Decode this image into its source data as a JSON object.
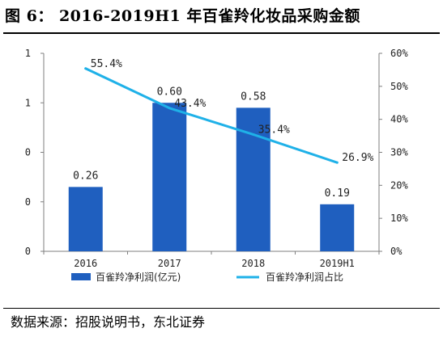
{
  "figure": {
    "title": "图 6：  2016-2019H1 年百雀羚化妆品采购金额",
    "source": "数据来源：招股说明书，东北证券"
  },
  "chart_data": {
    "type": "bar",
    "categories": [
      "2016",
      "2017",
      "2018",
      "2019H1"
    ],
    "series": [
      {
        "name": "百雀羚净利润(亿元)",
        "type": "bar",
        "axis": "left",
        "color": "#1f5fbf",
        "values": [
          0.26,
          0.6,
          0.58,
          0.19
        ],
        "labels": [
          "0.26",
          "0.60",
          "0.58",
          "0.19"
        ]
      },
      {
        "name": "百雀羚净利润占比",
        "type": "line",
        "axis": "right",
        "color": "#1fb1e8",
        "values": [
          55.4,
          43.4,
          35.4,
          26.9
        ],
        "labels": [
          "55.4%",
          "43.4%",
          "35.4%",
          "26.9%"
        ]
      }
    ],
    "left_axis": {
      "min": 0,
      "max": 0.8,
      "ticks": [
        0,
        0.2,
        0.4,
        0.6,
        0.8
      ],
      "tick_labels": [
        "0",
        "0",
        "0",
        "1",
        "1"
      ]
    },
    "right_axis": {
      "min": 0,
      "max": 60,
      "ticks": [
        0,
        10,
        20,
        30,
        40,
        50,
        60
      ],
      "tick_labels": [
        "0%",
        "10%",
        "20%",
        "30%",
        "40%",
        "50%",
        "60%"
      ]
    },
    "grid": false,
    "legend_position": "bottom"
  }
}
